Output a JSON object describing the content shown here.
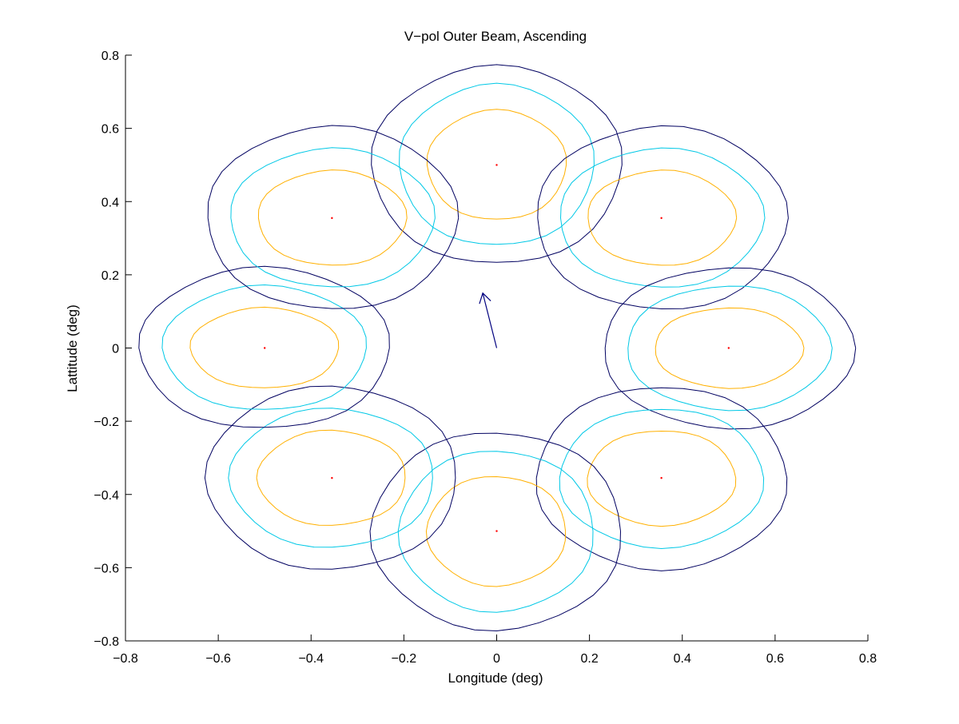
{
  "chart_data": {
    "type": "contour",
    "title": "V−pol Outer Beam, Ascending",
    "xlabel": "Longitude (deg)",
    "ylabel": "Lattitude (deg)",
    "xlim": [
      -0.8,
      0.8
    ],
    "ylim": [
      -0.8,
      0.8
    ],
    "xticks": [
      -0.8,
      -0.6,
      -0.4,
      -0.2,
      0,
      0.2,
      0.4,
      0.6,
      0.8
    ],
    "yticks": [
      -0.8,
      -0.6,
      -0.4,
      -0.2,
      0,
      0.2,
      0.4,
      0.6,
      0.8
    ],
    "xtick_labels": [
      "−0.8",
      "−0.6",
      "−0.4",
      "−0.2",
      "0",
      "0.2",
      "0.4",
      "0.6",
      "0.8"
    ],
    "ytick_labels": [
      "−0.8",
      "−0.6",
      "−0.4",
      "−0.2",
      "0",
      "0.2",
      "0.4",
      "0.6",
      "0.8"
    ],
    "grid": false,
    "contour_colors": [
      "#ffb000",
      "#00c8e6",
      "#000060"
    ],
    "center_marker_color": "#ff0000",
    "arrow_color": "#00007f",
    "beams": [
      {
        "center": [
          0.0,
          0.5
        ],
        "contours": [
          {
            "rx": 0.15,
            "ry": 0.15,
            "tilt": 0
          },
          {
            "rx": 0.21,
            "ry": 0.22,
            "tilt": 0
          },
          {
            "rx": 0.27,
            "ry": 0.27,
            "tilt": 0
          }
        ]
      },
      {
        "center": [
          0.355,
          0.355
        ],
        "contours": [
          {
            "rx": 0.16,
            "ry": 0.13,
            "tilt": 0
          },
          {
            "rx": 0.22,
            "ry": 0.19,
            "tilt": 0
          },
          {
            "rx": 0.27,
            "ry": 0.25,
            "tilt": 0
          }
        ]
      },
      {
        "center": [
          0.5,
          0.0
        ],
        "contours": [
          {
            "rx": 0.16,
            "ry": 0.11,
            "tilt": 0
          },
          {
            "rx": 0.22,
            "ry": 0.17,
            "tilt": 0
          },
          {
            "rx": 0.27,
            "ry": 0.22,
            "tilt": 0
          }
        ]
      },
      {
        "center": [
          0.355,
          -0.355
        ],
        "contours": [
          {
            "rx": 0.16,
            "ry": 0.13,
            "tilt": 0
          },
          {
            "rx": 0.22,
            "ry": 0.19,
            "tilt": 0
          },
          {
            "rx": 0.27,
            "ry": 0.25,
            "tilt": 0
          }
        ]
      },
      {
        "center": [
          0.0,
          -0.5
        ],
        "contours": [
          {
            "rx": 0.15,
            "ry": 0.15,
            "tilt": 0
          },
          {
            "rx": 0.21,
            "ry": 0.22,
            "tilt": 0
          },
          {
            "rx": 0.27,
            "ry": 0.27,
            "tilt": 0
          }
        ]
      },
      {
        "center": [
          -0.355,
          -0.355
        ],
        "contours": [
          {
            "rx": 0.16,
            "ry": 0.13,
            "tilt": 0
          },
          {
            "rx": 0.22,
            "ry": 0.19,
            "tilt": 0
          },
          {
            "rx": 0.27,
            "ry": 0.25,
            "tilt": 0
          }
        ]
      },
      {
        "center": [
          -0.5,
          0.0
        ],
        "contours": [
          {
            "rx": 0.16,
            "ry": 0.11,
            "tilt": 0
          },
          {
            "rx": 0.22,
            "ry": 0.17,
            "tilt": 0
          },
          {
            "rx": 0.27,
            "ry": 0.22,
            "tilt": 0
          }
        ]
      },
      {
        "center": [
          -0.355,
          0.355
        ],
        "contours": [
          {
            "rx": 0.16,
            "ry": 0.13,
            "tilt": 0
          },
          {
            "rx": 0.22,
            "ry": 0.19,
            "tilt": 0
          },
          {
            "rx": 0.27,
            "ry": 0.25,
            "tilt": 0
          }
        ]
      }
    ],
    "arrow": {
      "from": [
        0.0,
        0.0
      ],
      "to": [
        -0.03,
        0.15
      ]
    }
  }
}
